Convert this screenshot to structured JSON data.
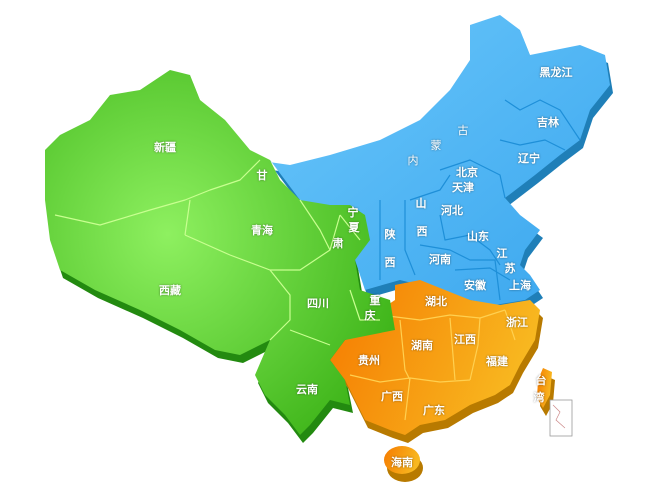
{
  "map": {
    "colors": {
      "west": "#5ccc2a",
      "north_east": "#4fb8f5",
      "south": "#f59a10"
    },
    "regions": {
      "xinjiang": "新疆",
      "xizang": "西藏",
      "qinghai": "青海",
      "gansu_1": "甘",
      "gansu_2": "肃",
      "ningxia_1": "宁",
      "ningxia_2": "夏",
      "shaanxi_1": "陕",
      "shaanxi_2": "西",
      "shanxi_1": "山",
      "shanxi_2": "西",
      "neimenggu_1": "内",
      "neimenggu_2": "蒙",
      "neimenggu_3": "古",
      "heilongjiang": "黑龙江",
      "jilin": "吉林",
      "liaoning": "辽宁",
      "beijing": "北京",
      "tianjin": "天津",
      "hebei": "河北",
      "shandong": "山东",
      "jiangsu_1": "江",
      "jiangsu_2": "苏",
      "anhui": "安徽",
      "shanghai": "上海",
      "henan": "河南",
      "hubei": "湖北",
      "chongqing_1": "重",
      "chongqing_2": "庆",
      "sichuan": "四川",
      "guizhou": "贵州",
      "hunan": "湖南",
      "jiangxi": "江西",
      "zhejiang": "浙江",
      "fujian": "福建",
      "taiwan_1": "台",
      "taiwan_2": "湾",
      "guangxi": "广西",
      "guangdong": "广东",
      "hainan": "海南",
      "yunnan": "云南"
    }
  }
}
